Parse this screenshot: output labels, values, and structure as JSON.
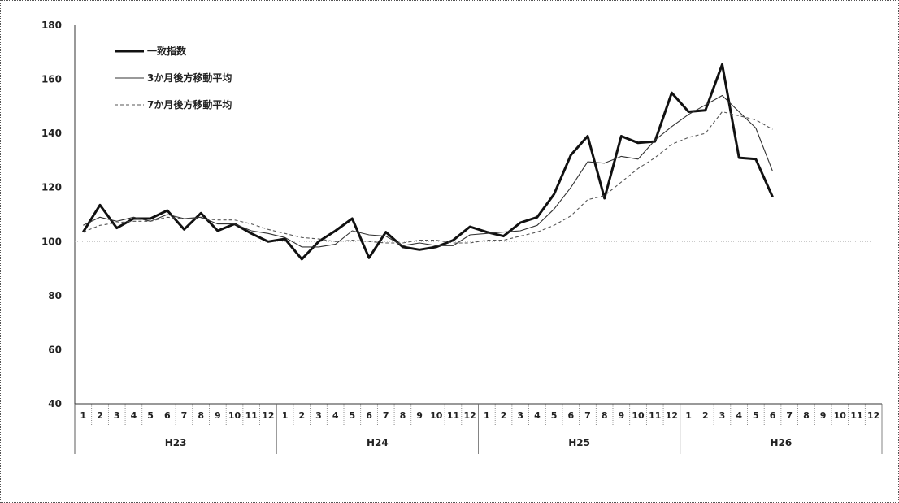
{
  "chart_data": {
    "type": "line",
    "title": "",
    "xlabel": "",
    "ylabel": "",
    "ylim": [
      40,
      180
    ],
    "yticks": [
      "40",
      "60",
      "80",
      "100",
      "120",
      "140",
      "160",
      "180"
    ],
    "reference_line": 100,
    "month_labels": [
      "1",
      "2",
      "3",
      "4",
      "5",
      "6",
      "7",
      "8",
      "9",
      "10",
      "11",
      "12",
      "1",
      "2",
      "3",
      "4",
      "5",
      "6",
      "7",
      "8",
      "9",
      "10",
      "11",
      "12",
      "1",
      "2",
      "3",
      "4",
      "5",
      "6",
      "7",
      "8",
      "9",
      "10",
      "11",
      "12",
      "1",
      "2",
      "3",
      "4",
      "5",
      "6",
      "7",
      "8",
      "9",
      "10",
      "11",
      "12"
    ],
    "years": [
      "H23",
      "H24",
      "H25",
      "H26"
    ],
    "legend_position": "top-left",
    "series": [
      {
        "name": "一致指数",
        "style": "thick",
        "color": "#111111",
        "values": [
          103.5,
          113.5,
          105,
          108.5,
          108.5,
          111.5,
          104.5,
          110.5,
          104,
          106.5,
          103,
          100,
          101,
          93.5,
          100,
          104,
          108.5,
          94,
          103.5,
          98,
          97,
          98,
          100.5,
          105.5,
          103.5,
          102,
          107,
          109,
          117.5,
          132,
          139,
          116,
          139,
          136.5,
          137,
          155,
          148,
          148.5,
          165.5,
          131,
          130.5,
          116.5
        ]
      },
      {
        "name": "3か月後方移動平均",
        "style": "thin",
        "color": "#333333",
        "values": [
          106,
          109,
          107.5,
          109,
          107.5,
          110,
          108.5,
          109,
          106.5,
          106.5,
          104,
          103,
          101.5,
          98,
          98,
          99,
          104,
          102.5,
          102,
          98.5,
          99.5,
          98.5,
          98.5,
          102.5,
          103,
          103.5,
          104,
          106,
          112,
          120,
          129.5,
          129,
          131.5,
          130.5,
          137.5,
          142.5,
          147,
          150.5,
          154,
          148,
          142,
          126
        ]
      },
      {
        "name": "7か月後方移動平均",
        "style": "dashed",
        "color": "#555555",
        "values": [
          103.5,
          106,
          107,
          107.5,
          107.5,
          109,
          108.5,
          108.5,
          108,
          108,
          106.5,
          104.5,
          103,
          101.5,
          101,
          100,
          100.5,
          100,
          99.5,
          99.5,
          100.5,
          100.5,
          99.5,
          99.5,
          100.5,
          100.5,
          102,
          103.5,
          106,
          109.5,
          115.5,
          117,
          122,
          127,
          131,
          136,
          138.5,
          140,
          148,
          146.5,
          145,
          141.5
        ]
      }
    ]
  }
}
